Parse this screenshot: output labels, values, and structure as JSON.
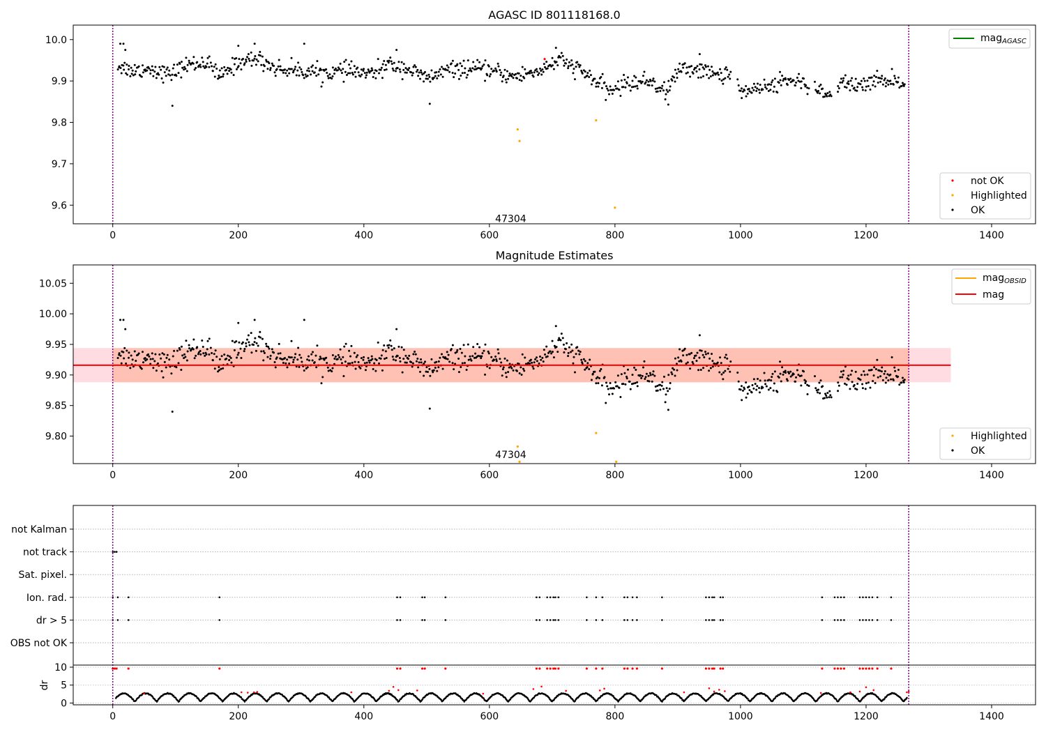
{
  "figure": {
    "panel1_title": "AGASC ID 801118168.0",
    "panel2_title": "Magnitude Estimates",
    "obsid_label": "47304"
  },
  "colors": {
    "ok": "#000000",
    "not_ok": "#ff0000",
    "highlighted": "#ffa500",
    "mag_agasc": "#008000",
    "mag_obsid": "#ffa500",
    "mag": "#ff0000",
    "obs_boundary": "#800080",
    "band_obsid": "#ffa07a",
    "band_mag": "#ffc0cb"
  },
  "chart_data": [
    {
      "type": "scatter",
      "title": "AGASC ID 801118168.0",
      "xlim": [
        -63,
        1470
      ],
      "ylim": [
        9.555,
        10.035
      ],
      "xticks": [
        0,
        200,
        400,
        600,
        800,
        1000,
        1200,
        1400
      ],
      "yticks": [
        9.6,
        9.7,
        9.8,
        9.9,
        10.0
      ],
      "ytick_labels": [
        "9.6",
        "9.7",
        "9.8",
        "9.9",
        "10.0"
      ],
      "obs_boundaries": [
        0,
        1268
      ],
      "annotation": {
        "text": "47304",
        "x": 634,
        "y": 9.568
      },
      "legend_lines": [
        {
          "label": "mag",
          "subscript": "AGASC",
          "color": "#008000"
        }
      ],
      "legend_points": [
        "not OK",
        "Highlighted",
        "OK"
      ],
      "ok_trend": [
        [
          5,
          9.94
        ],
        [
          30,
          9.925
        ],
        [
          60,
          9.93
        ],
        [
          90,
          9.915
        ],
        [
          120,
          9.94
        ],
        [
          150,
          9.945
        ],
        [
          170,
          9.91
        ],
        [
          200,
          9.945
        ],
        [
          230,
          9.955
        ],
        [
          260,
          9.93
        ],
        [
          300,
          9.925
        ],
        [
          340,
          9.92
        ],
        [
          380,
          9.925
        ],
        [
          410,
          9.915
        ],
        [
          440,
          9.94
        ],
        [
          470,
          9.93
        ],
        [
          500,
          9.905
        ],
        [
          530,
          9.925
        ],
        [
          560,
          9.93
        ],
        [
          600,
          9.925
        ],
        [
          640,
          9.91
        ],
        [
          680,
          9.925
        ],
        [
          710,
          9.95
        ],
        [
          740,
          9.93
        ],
        [
          760,
          9.91
        ],
        [
          790,
          9.875
        ],
        [
          820,
          9.895
        ],
        [
          860,
          9.9
        ],
        [
          880,
          9.87
        ],
        [
          900,
          9.925
        ],
        [
          930,
          9.93
        ],
        [
          960,
          9.915
        ],
        [
          990,
          9.92
        ],
        [
          1000,
          9.875
        ],
        [
          1040,
          9.885
        ],
        [
          1080,
          9.905
        ],
        [
          1110,
          9.885
        ],
        [
          1145,
          9.86
        ],
        [
          1160,
          9.9
        ],
        [
          1190,
          9.885
        ],
        [
          1220,
          9.905
        ],
        [
          1250,
          9.9
        ],
        [
          1268,
          9.88
        ]
      ],
      "ok_scatter": 0.018,
      "ok_points_n": 900,
      "ok_extra_points": [
        [
          95,
          9.84
        ],
        [
          505,
          9.845
        ],
        [
          885,
          9.843
        ]
      ],
      "highlighted_points": [
        [
          645,
          9.783
        ],
        [
          648,
          9.755
        ],
        [
          770,
          9.805
        ],
        [
          800,
          9.594
        ]
      ],
      "not_ok_points": [
        [
          688,
          9.953
        ]
      ]
    },
    {
      "type": "scatter",
      "title": "Magnitude Estimates",
      "xlim": [
        -63,
        1470
      ],
      "ylim": [
        9.755,
        10.08
      ],
      "xticks": [
        0,
        200,
        400,
        600,
        800,
        1000,
        1200,
        1400
      ],
      "yticks": [
        9.8,
        9.85,
        9.9,
        9.95,
        10.0,
        10.05
      ],
      "ytick_labels": [
        "9.80",
        "9.85",
        "9.90",
        "9.95",
        "10.00",
        "10.05"
      ],
      "obs_boundaries": [
        0,
        1268
      ],
      "annotation": {
        "text": "47304",
        "x": 634,
        "y": 9.77
      },
      "mag_line": 9.916,
      "mag_band": [
        9.888,
        9.944
      ],
      "mag_band_x": [
        -63,
        1335
      ],
      "obsid_band": [
        9.888,
        9.944
      ],
      "obsid_band_x": [
        0,
        1268
      ],
      "legend_lines": [
        {
          "label": "mag",
          "subscript": "OBSID",
          "color": "#ffa500"
        },
        {
          "label": "mag",
          "subscript": "",
          "color": "#ff0000"
        }
      ],
      "legend_points": [
        "Highlighted",
        "OK"
      ],
      "highlighted_points": [
        [
          645,
          9.783
        ],
        [
          648,
          9.758
        ],
        [
          770,
          9.805
        ],
        [
          802,
          9.758
        ]
      ]
    },
    {
      "type": "scatter",
      "xlim": [
        -63,
        1470
      ],
      "xticks": [
        0,
        200,
        400,
        600,
        800,
        1000,
        1200,
        1400
      ],
      "obs_boundaries": [
        0,
        1268
      ],
      "flag_rows": [
        "not Kalman",
        "not track",
        "Sat. pixel.",
        "Ion. rad.",
        "dr > 5",
        "OBS not OK"
      ],
      "flag_points": {
        "not track": [
          0,
          3,
          6
        ],
        "Ion. rad.": [
          0,
          8,
          25,
          170,
          453,
          458,
          493,
          497,
          530,
          675,
          680,
          692,
          697,
          702,
          705,
          710,
          755,
          770,
          780,
          815,
          820,
          828,
          835,
          875,
          945,
          950,
          955,
          958,
          968,
          972,
          1130,
          1150,
          1155,
          1160,
          1165,
          1190,
          1195,
          1200,
          1205,
          1210,
          1218,
          1240
        ],
        "dr > 5": [
          0,
          8,
          25,
          170,
          453,
          458,
          493,
          497,
          530,
          675,
          680,
          692,
          697,
          702,
          705,
          710,
          755,
          770,
          780,
          815,
          820,
          828,
          835,
          875,
          945,
          950,
          955,
          958,
          968,
          972,
          1130,
          1150,
          1155,
          1160,
          1165,
          1190,
          1195,
          1200,
          1205,
          1210,
          1218,
          1240
        ]
      },
      "dr_label": "dr",
      "dr_ylim": [
        -0.5,
        10
      ],
      "dr_yticks": [
        0,
        5,
        10
      ],
      "dr_ytick_labels": [
        "0",
        "5",
        "10"
      ],
      "dr_clipped_points": [
        0,
        3,
        6,
        25,
        170,
        453,
        458,
        493,
        497,
        530,
        675,
        680,
        692,
        697,
        702,
        705,
        710,
        755,
        770,
        780,
        815,
        820,
        828,
        835,
        875,
        945,
        950,
        955,
        958,
        968,
        972,
        1130,
        1150,
        1155,
        1160,
        1165,
        1190,
        1195,
        1200,
        1205,
        1210,
        1218,
        1240
      ],
      "dr_red_points": [
        [
          50,
          2.7
        ],
        [
          205,
          3.0
        ],
        [
          215,
          2.9
        ],
        [
          225,
          3.0
        ],
        [
          230,
          3.1
        ],
        [
          380,
          3.0
        ],
        [
          440,
          3.4
        ],
        [
          447,
          4.5
        ],
        [
          455,
          3.6
        ],
        [
          485,
          3.5
        ],
        [
          590,
          2.6
        ],
        [
          670,
          3.9
        ],
        [
          683,
          4.6
        ],
        [
          722,
          3.4
        ],
        [
          776,
          3.5
        ],
        [
          783,
          4.0
        ],
        [
          910,
          3.0
        ],
        [
          950,
          4.1
        ],
        [
          958,
          3.2
        ],
        [
          966,
          3.7
        ],
        [
          975,
          3.3
        ],
        [
          1128,
          2.8
        ],
        [
          1175,
          3.0
        ],
        [
          1190,
          3.2
        ],
        [
          1200,
          4.4
        ],
        [
          1212,
          3.6
        ],
        [
          1265,
          3.0
        ],
        [
          1268,
          3.2
        ]
      ]
    }
  ]
}
